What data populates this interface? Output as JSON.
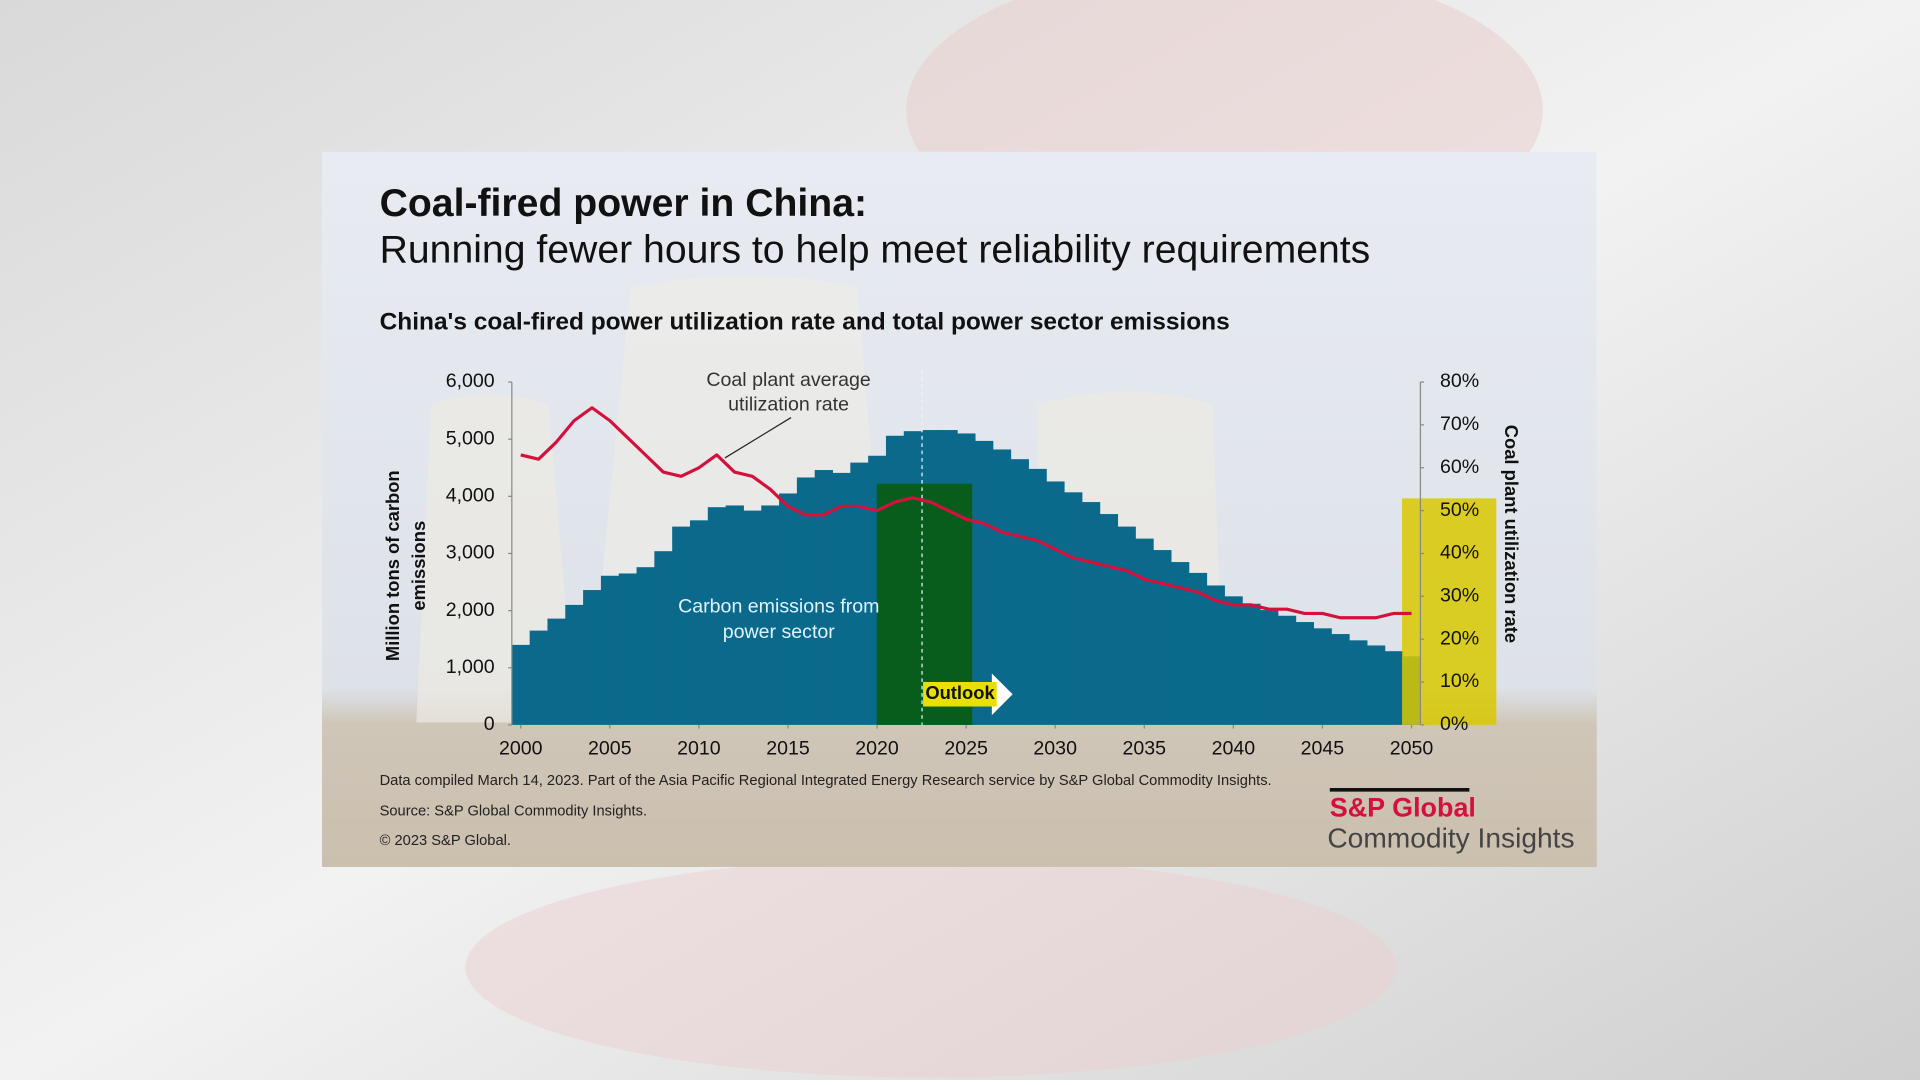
{
  "chart_data": {
    "type": "combo",
    "title": "Coal-fired power in China:",
    "subtitle": "Running fewer hours to help meet reliability requirements",
    "chart_title": "China's coal-fired power utilization rate and total power sector emissions",
    "y_label": [
      "Million tons of carbon",
      "emissions"
    ],
    "y2_label": "Coal plant utilization rate",
    "annotations": {
      "line": [
        "Coal plant average",
        "utilization rate"
      ],
      "area": [
        "Carbon emissions from",
        "power sector"
      ],
      "outlook": "Outlook"
    },
    "x": [
      2000,
      2001,
      2002,
      2003,
      2004,
      2005,
      2006,
      2007,
      2008,
      2009,
      2010,
      2011,
      2012,
      2013,
      2014,
      2015,
      2016,
      2017,
      2018,
      2019,
      2020,
      2021,
      2022,
      2023,
      2024,
      2025,
      2026,
      2027,
      2028,
      2029,
      2030,
      2031,
      2032,
      2033,
      2034,
      2035,
      2036,
      2037,
      2038,
      2039,
      2040,
      2041,
      2042,
      2043,
      2044,
      2045,
      2046,
      2047,
      2048,
      2049,
      2050
    ],
    "xlim": [
      1999.5,
      2050.5
    ],
    "xticks": [
      2000,
      2005,
      2010,
      2015,
      2020,
      2025,
      2030,
      2035,
      2040,
      2045,
      2050
    ],
    "ylim": [
      0,
      6000
    ],
    "yticks": [
      {
        "value": 0,
        "label": "0"
      },
      {
        "value": 1000,
        "label": "1,000"
      },
      {
        "value": 2000,
        "label": "2,000"
      },
      {
        "value": 3000,
        "label": "3,000"
      },
      {
        "value": 4000,
        "label": "4,000"
      },
      {
        "value": 5000,
        "label": "5,000"
      },
      {
        "value": 6000,
        "label": "6,000"
      }
    ],
    "y2lim": [
      0,
      80
    ],
    "y2ticks": [
      {
        "value": 0,
        "label": "0%"
      },
      {
        "value": 10,
        "label": "10%"
      },
      {
        "value": 20,
        "label": "20%"
      },
      {
        "value": 30,
        "label": "30%"
      },
      {
        "value": 40,
        "label": "40%"
      },
      {
        "value": 50,
        "label": "50%"
      },
      {
        "value": 60,
        "label": "60%"
      },
      {
        "value": 70,
        "label": "70%"
      },
      {
        "value": 80,
        "label": "80%"
      }
    ],
    "series": [
      {
        "type": "bar",
        "color": "#0b6a8c",
        "values": [
          1400,
          1650,
          1860,
          2100,
          2360,
          2610,
          2650,
          2760,
          3040,
          3470,
          3580,
          3810,
          3840,
          3750,
          3840,
          4050,
          4330,
          4460,
          4410,
          4590,
          4710,
          5060,
          5140,
          5160,
          5160,
          5100,
          4970,
          4820,
          4650,
          4480,
          4260,
          4070,
          3900,
          3690,
          3470,
          3260,
          3060,
          2850,
          2660,
          2440,
          2250,
          2120,
          2010,
          1910,
          1800,
          1690,
          1590,
          1480,
          1390,
          1290,
          1200
        ]
      },
      {
        "type": "line",
        "axis": "y2",
        "color": "#d4103c",
        "values": [
          63,
          62,
          66,
          71,
          74,
          71,
          67,
          63,
          59,
          58,
          60,
          63,
          59,
          58,
          55,
          51,
          49,
          49,
          51,
          51,
          50,
          52,
          53,
          52,
          50,
          48,
          47,
          45,
          44,
          43,
          41,
          39,
          38,
          37,
          36,
          34,
          33,
          32,
          31,
          29,
          28,
          28,
          27,
          27,
          26,
          26,
          25,
          25,
          25,
          26,
          26
        ]
      }
    ],
    "footnotes": [
      "Data compiled March 14, 2023. Part of the Asia Pacific Regional Integrated Energy Research service by S&P Global Commodity Insights.",
      "Source: S&P Global Commodity Insights.",
      "© 2023 S&P Global."
    ],
    "logo": [
      "S&P Global",
      "Commodity Insights"
    ]
  }
}
